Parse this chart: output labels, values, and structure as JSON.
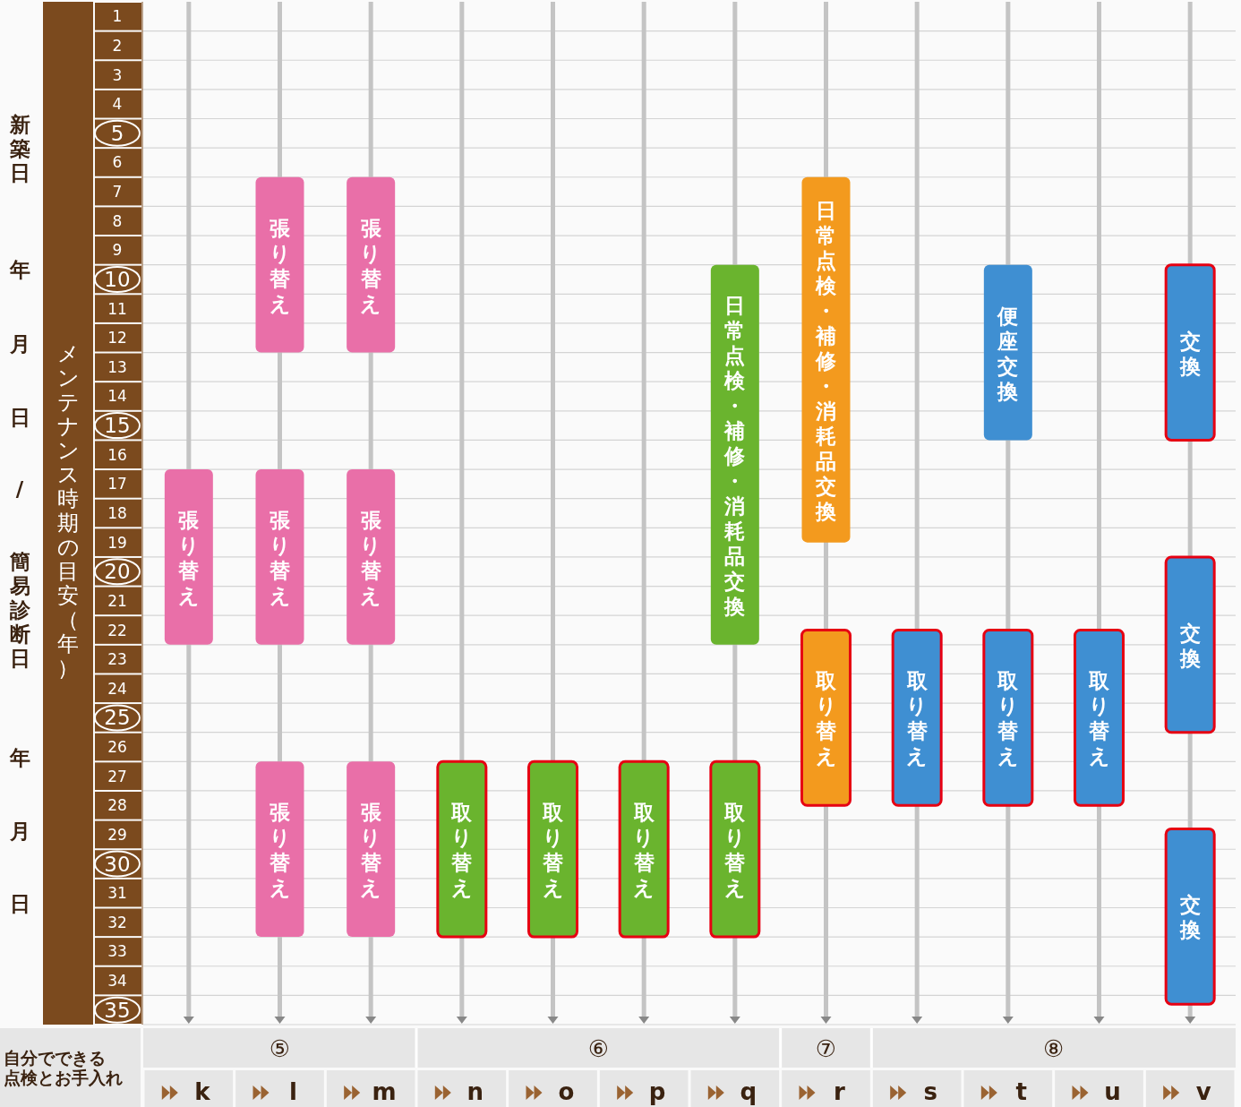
{
  "chart_data": {
    "type": "bar",
    "ylabel": "メンテナンス時期の目安（年）",
    "categories": [
      "k",
      "l",
      "m",
      "n",
      "o",
      "p",
      "q",
      "r",
      "s",
      "t",
      "u",
      "v"
    ],
    "ylim": [
      35,
      0
    ],
    "yticks": [
      1,
      2,
      3,
      4,
      5,
      6,
      7,
      8,
      9,
      10,
      11,
      12,
      13,
      14,
      15,
      16,
      17,
      18,
      19,
      20,
      21,
      22,
      23,
      24,
      25,
      26,
      27,
      28,
      29,
      30,
      31,
      32,
      33,
      34,
      35
    ],
    "grid": true,
    "annotations": [
      "新築日",
      "年",
      "月",
      "日",
      "/",
      "簡易診断日",
      "年",
      "月",
      "日",
      "自分でできる点検とお手入れ",
      "⑤",
      "⑥",
      "⑦",
      "⑧"
    ],
    "series": [
      {
        "color": "#e96fa8",
        "values": [
          null,
          6,
          6,
          null,
          null,
          null,
          null,
          null,
          null,
          null,
          null,
          null
        ],
        "base": [
          null,
          6,
          6,
          null,
          null,
          null,
          null,
          null,
          null,
          null,
          null,
          null
        ],
        "value_labels": [
          null,
          "張り替え",
          "張り替え",
          null,
          null,
          null,
          null,
          null,
          null,
          null,
          null,
          null
        ]
      },
      {
        "color": "#e96fa8",
        "values": [
          6,
          6,
          6,
          null,
          null,
          null,
          null,
          null,
          null,
          null,
          null,
          null
        ],
        "base": [
          16,
          16,
          16,
          null,
          null,
          null,
          null,
          null,
          null,
          null,
          null,
          null
        ],
        "value_labels": [
          "張り替え",
          "張り替え",
          "張り替え",
          null,
          null,
          null,
          null,
          null,
          null,
          null,
          null,
          null
        ]
      },
      {
        "color": "#e96fa8",
        "values": [
          null,
          6,
          6,
          null,
          null,
          null,
          null,
          null,
          null,
          null,
          null,
          null
        ],
        "base": [
          null,
          26,
          26,
          null,
          null,
          null,
          null,
          null,
          null,
          null,
          null,
          null
        ],
        "value_labels": [
          null,
          "張り替え",
          "張り替え",
          null,
          null,
          null,
          null,
          null,
          null,
          null,
          null,
          null
        ]
      },
      {
        "color": "#6ab42e",
        "values": [
          null,
          null,
          null,
          6,
          6,
          6,
          6,
          null,
          null,
          null,
          null,
          null
        ],
        "base": [
          null,
          null,
          null,
          26,
          26,
          26,
          26,
          null,
          null,
          null,
          null,
          null
        ],
        "value_labels": [
          null,
          null,
          null,
          "取り替え",
          "取り替え",
          "取り替え",
          "取り替え",
          null,
          null,
          null,
          null,
          null
        ]
      },
      {
        "color": "#6ab42e",
        "values": [
          null,
          null,
          null,
          null,
          null,
          null,
          13,
          null,
          null,
          null,
          null,
          null
        ],
        "base": [
          null,
          null,
          null,
          null,
          null,
          null,
          9,
          null,
          null,
          null,
          null,
          null
        ],
        "value_labels": [
          null,
          null,
          null,
          null,
          null,
          null,
          "日常点検・補修・消耗品交換",
          null,
          null,
          null,
          null,
          null
        ]
      },
      {
        "color": "#f39a1e",
        "values": [
          null,
          null,
          null,
          null,
          null,
          null,
          null,
          12.5,
          null,
          null,
          null,
          null
        ],
        "base": [
          null,
          null,
          null,
          null,
          null,
          null,
          null,
          6,
          null,
          null,
          null,
          null
        ],
        "value_labels": [
          null,
          null,
          null,
          null,
          null,
          null,
          null,
          "日常点検・補修・消耗品交換",
          null,
          null,
          null,
          null
        ]
      },
      {
        "color": "#f39a1e",
        "values": [
          null,
          null,
          null,
          null,
          null,
          null,
          null,
          6,
          null,
          null,
          null,
          null
        ],
        "base": [
          null,
          null,
          null,
          null,
          null,
          null,
          null,
          21.5,
          null,
          null,
          null,
          null
        ],
        "value_labels": [
          null,
          null,
          null,
          null,
          null,
          null,
          null,
          "取り替え",
          null,
          null,
          null,
          null
        ]
      },
      {
        "color": "#3f8fd2",
        "values": [
          null,
          null,
          null,
          null,
          null,
          null,
          null,
          null,
          6,
          6,
          6,
          null
        ],
        "base": [
          null,
          null,
          null,
          null,
          null,
          null,
          null,
          null,
          21.5,
          21.5,
          21.5,
          null
        ],
        "value_labels": [
          null,
          null,
          null,
          null,
          null,
          null,
          null,
          null,
          "取り替え",
          "取り替え",
          "取り替え",
          null
        ]
      },
      {
        "color": "#3f8fd2",
        "values": [
          null,
          null,
          null,
          null,
          null,
          null,
          null,
          null,
          null,
          6,
          null,
          null
        ],
        "base": [
          null,
          null,
          null,
          null,
          null,
          null,
          null,
          null,
          null,
          9,
          null,
          null
        ],
        "value_labels": [
          null,
          null,
          null,
          null,
          null,
          null,
          null,
          null,
          null,
          "便座交換",
          null,
          null
        ]
      },
      {
        "color": "#3f8fd2",
        "values": [
          null,
          null,
          null,
          null,
          null,
          null,
          null,
          null,
          null,
          null,
          null,
          6
        ],
        "base": [
          null,
          null,
          null,
          null,
          null,
          null,
          null,
          null,
          null,
          null,
          null,
          9
        ],
        "value_labels": [
          null,
          null,
          null,
          null,
          null,
          null,
          null,
          null,
          null,
          null,
          null,
          "交換"
        ]
      },
      {
        "color": "#3f8fd2",
        "values": [
          null,
          null,
          null,
          null,
          null,
          null,
          null,
          null,
          null,
          null,
          null,
          6
        ],
        "base": [
          null,
          null,
          null,
          null,
          null,
          null,
          null,
          null,
          null,
          null,
          null,
          19
        ],
        "value_labels": [
          null,
          null,
          null,
          null,
          null,
          null,
          null,
          null,
          null,
          null,
          null,
          "交換"
        ]
      },
      {
        "color": "#3f8fd2",
        "values": [
          null,
          null,
          null,
          null,
          null,
          null,
          null,
          null,
          null,
          null,
          null,
          6
        ],
        "base": [
          null,
          null,
          null,
          null,
          null,
          null,
          null,
          null,
          null,
          null,
          null,
          28.3
        ],
        "value_labels": [
          null,
          null,
          null,
          null,
          null,
          null,
          null,
          null,
          null,
          null,
          null,
          "交換"
        ]
      }
    ]
  }
}
